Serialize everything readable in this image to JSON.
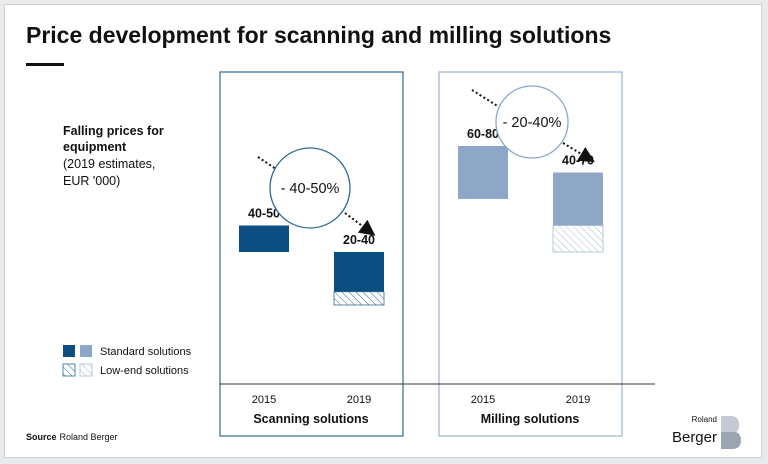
{
  "title": "Price development for scanning and milling solutions",
  "side_label": {
    "line1": "Falling prices for",
    "line2": "equipment",
    "line3": "(2019 estimates,",
    "line4": "EUR '000)"
  },
  "legend": {
    "standard": "Standard solutions",
    "lowend": "Low-end solutions"
  },
  "source": {
    "prefix": "Source",
    "text": "Roland Berger"
  },
  "logo": {
    "small": "Roland",
    "big": "Berger"
  },
  "colors": {
    "scanning": "#0b4f82",
    "milling": "#8fa7c7",
    "scanning_border": "#2d6a97",
    "milling_border": "#9db2cc",
    "circle_scanning": "#2d6a97",
    "circle_milling": "#8fa7c7"
  },
  "chart_data": {
    "type": "bar",
    "title": "Price development for scanning and milling solutions",
    "ylabel": "EUR '000 (2019 estimates)",
    "ylim": [
      0,
      120
    ],
    "groups": [
      {
        "name": "Scanning solutions",
        "change": "- 40-50%",
        "series": [
          {
            "category": "2015",
            "label": "40-50",
            "low": 40,
            "high": 50,
            "lowend_from": null
          },
          {
            "category": "2019",
            "label": "20-40",
            "low": 20,
            "high": 40,
            "lowend_from": 25
          }
        ]
      },
      {
        "name": "Milling solutions",
        "change": "- 20-40%",
        "series": [
          {
            "category": "2015",
            "label": "60-80",
            "low": 60,
            "high": 80,
            "lowend_from": null
          },
          {
            "category": "2019",
            "label": "40-70",
            "low": 40,
            "high": 70,
            "lowend_from": 50
          }
        ]
      }
    ]
  }
}
